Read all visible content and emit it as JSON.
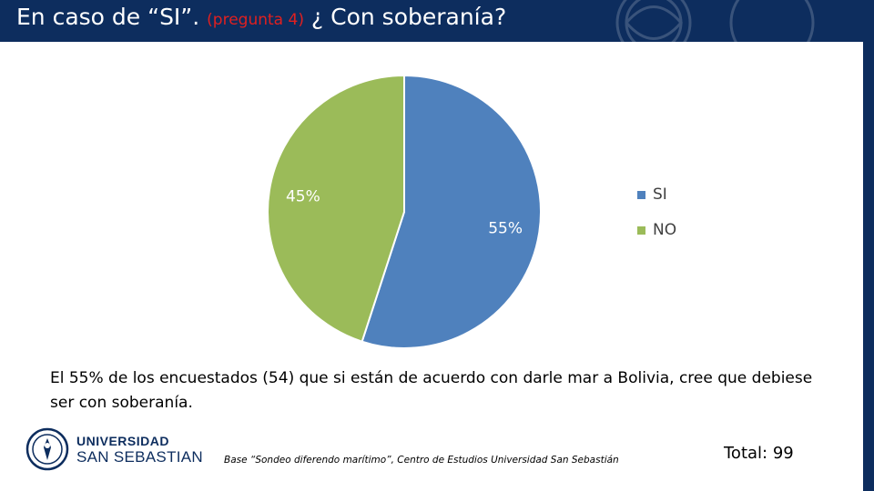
{
  "header": {
    "title_main": "En caso de “SI”.",
    "title_note": "(pregunta 4)",
    "title_question": "¿ Con soberanía?"
  },
  "chart_data": {
    "type": "pie",
    "categories": [
      "SI",
      "NO"
    ],
    "values": [
      55,
      45
    ],
    "labels": [
      "55%",
      "45%"
    ],
    "colors": [
      "#4f81bd",
      "#9bbb59"
    ],
    "legend_position": "right"
  },
  "description": "El 55% de los encuestados (54) que si están de acuerdo con darle mar a Bolivia, cree que debiese ser con soberanía.",
  "logo": {
    "line1": "UNIVERSIDAD",
    "line2": "SAN SEBASTIAN"
  },
  "source": "Base “Sondeo diferendo marítimo”, Centro de Estudios Universidad San Sebastián",
  "total": {
    "label": "Total:",
    "value": "99"
  },
  "theme": {
    "header_color": "#0d2d5e",
    "accent_red": "#e02020"
  }
}
